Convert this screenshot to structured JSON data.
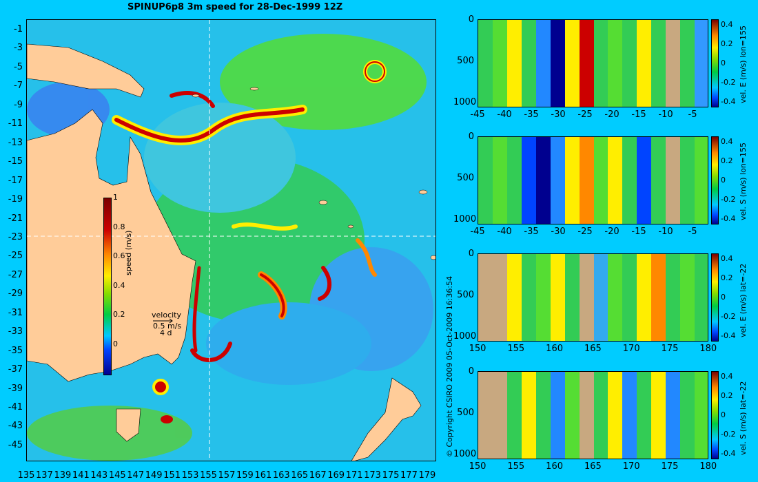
{
  "title": "SPINUP6p8 3m speed for 28-Dec-1999 12Z",
  "map": {
    "lat_labels": [
      "-1",
      "-3",
      "-5",
      "-7",
      "-9",
      "-11",
      "-13",
      "-15",
      "-17",
      "-19",
      "-21",
      "-23",
      "-25",
      "-27",
      "-29",
      "-31",
      "-33",
      "-35",
      "-37",
      "-39",
      "-41",
      "-43",
      "-45"
    ],
    "lon_labels": [
      "135",
      "137",
      "139",
      "141",
      "143",
      "145",
      "147",
      "149",
      "151",
      "153",
      "155",
      "157",
      "159",
      "161",
      "163",
      "165",
      "167",
      "169",
      "171",
      "173",
      "175",
      "177",
      "179"
    ],
    "colorbar": {
      "title": "speed (m/s)",
      "ticks": [
        "1",
        "0.8",
        "0.6",
        "0.4",
        "0.2",
        "0"
      ]
    },
    "velocity_key": {
      "label": "velocity",
      "speed": "0.5 m/s",
      "duration": "4 d"
    },
    "copyright": "© Copyright CSIRO 2009   05-Oct-2009 16:36:54",
    "land_color": "#ffcc99",
    "ocean_color": "#26c0ea"
  },
  "panels": [
    {
      "title": "vel. E (m/s) lon=155",
      "x_ticks": [
        "-45",
        "-40",
        "-35",
        "-30",
        "-25",
        "-20",
        "-15",
        "-10",
        "-5"
      ],
      "y_ticks": [
        "0",
        "500",
        "1000"
      ],
      "cb_ticks": [
        "0.4",
        "0.2",
        "0",
        "-0.2",
        "-0.4"
      ]
    },
    {
      "title": "vel. S (m/s) lon=155",
      "x_ticks": [
        "-45",
        "-40",
        "-35",
        "-30",
        "-25",
        "-20",
        "-15",
        "-10",
        "-5"
      ],
      "y_ticks": [
        "0",
        "500",
        "1000"
      ],
      "cb_ticks": [
        "0.4",
        "0.2",
        "0",
        "-0.2",
        "-0.4"
      ]
    },
    {
      "title": "vel. E (m/s) lat=-22",
      "x_ticks": [
        "150",
        "155",
        "160",
        "165",
        "170",
        "175",
        "180"
      ],
      "y_ticks": [
        "0",
        "500",
        "1000"
      ],
      "cb_ticks": [
        "0.4",
        "0.2",
        "0",
        "-0.2",
        "-0.4"
      ]
    },
    {
      "title": "vel. S (m/s) lat=-22",
      "x_ticks": [
        "150",
        "155",
        "160",
        "165",
        "170",
        "175",
        "180"
      ],
      "y_ticks": [
        "0",
        "500",
        "1000"
      ],
      "cb_ticks": [
        "0.4",
        "0.2",
        "0",
        "-0.2",
        "-0.4"
      ]
    }
  ]
}
